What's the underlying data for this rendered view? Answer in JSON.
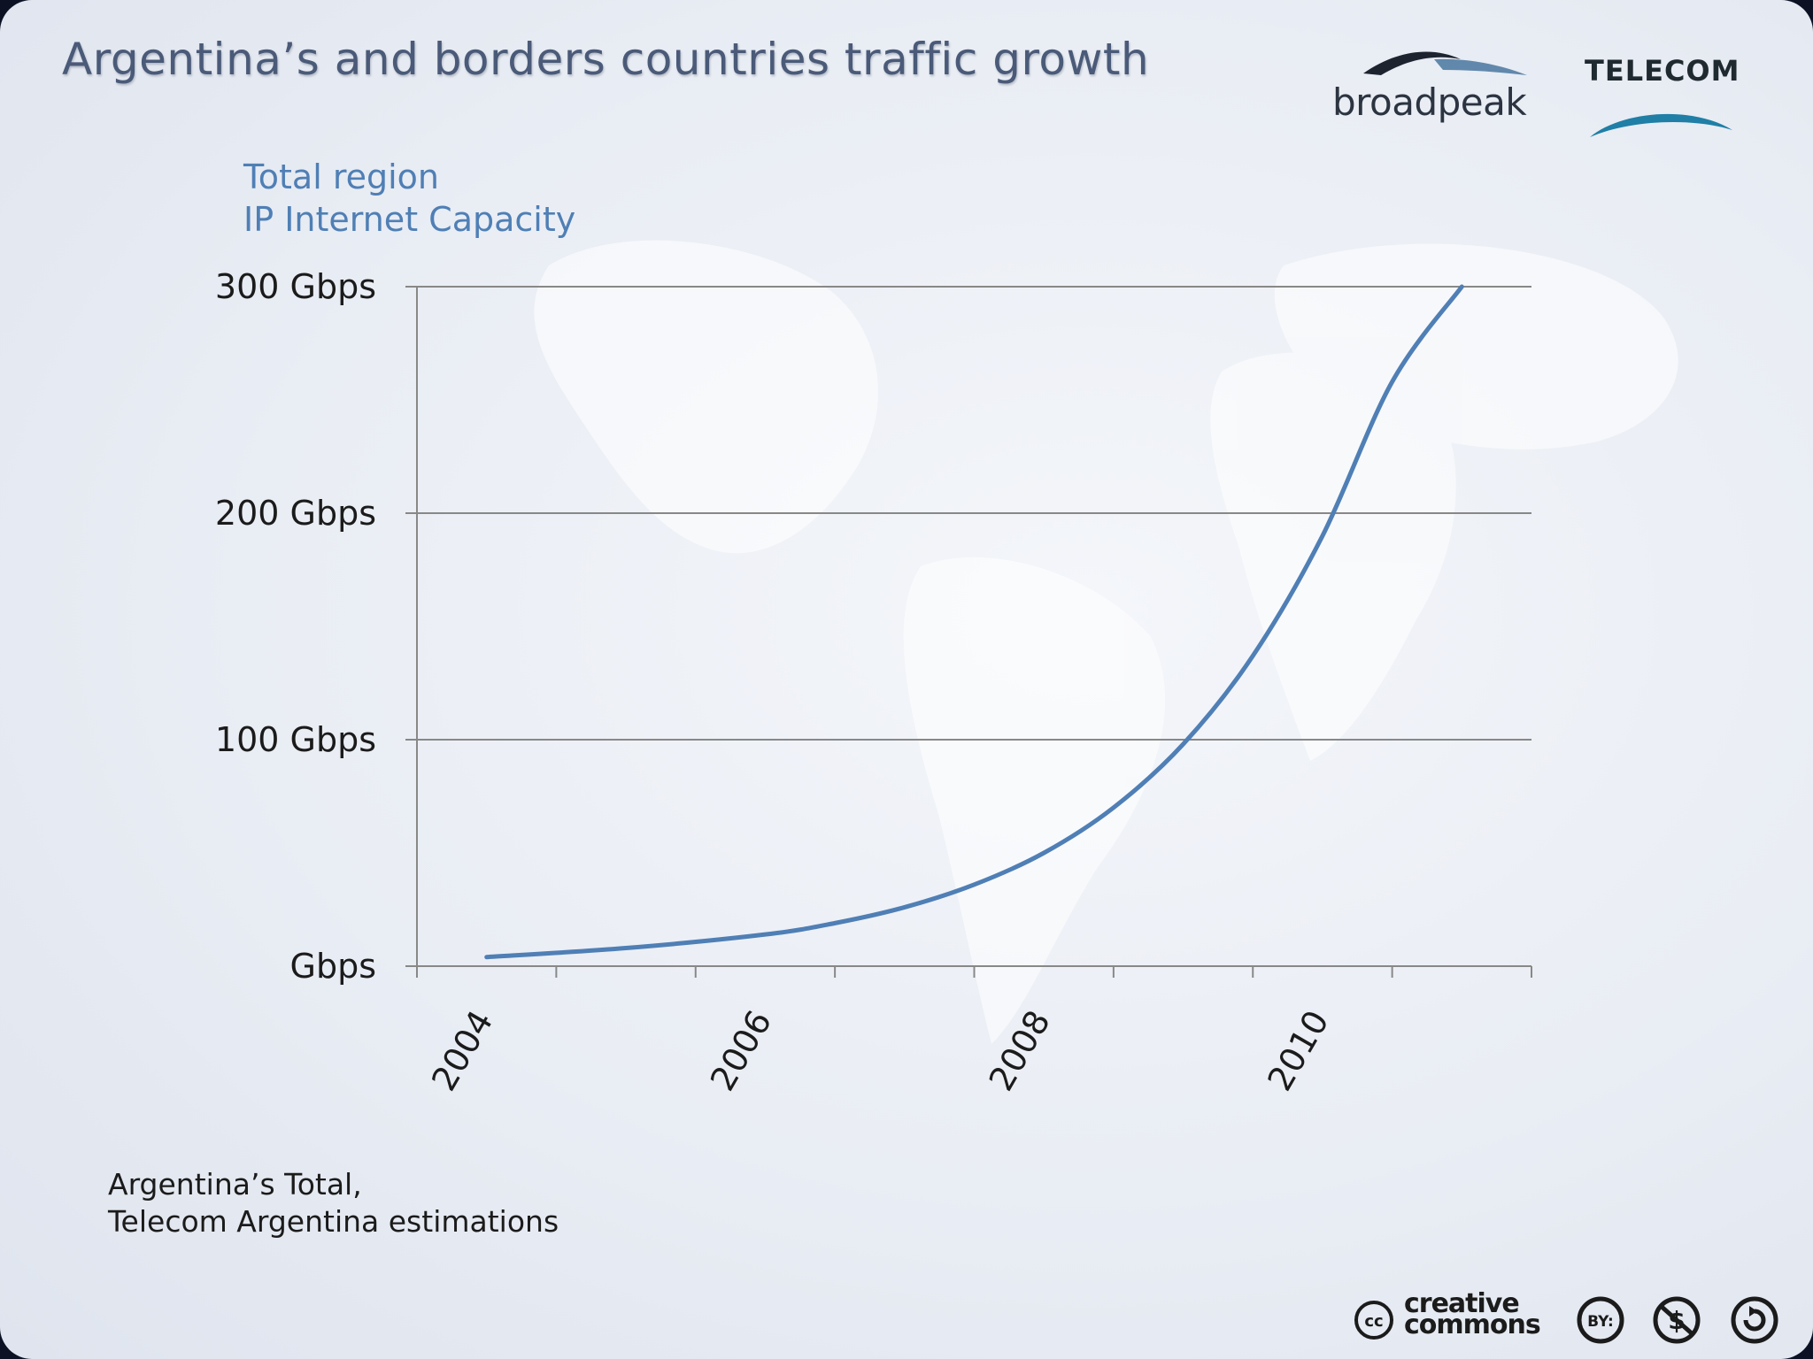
{
  "slide": {
    "title": "Argentina’s and borders countries traffic  growth",
    "source_line1": "Argentina’s Total,",
    "source_line2": "Telecom Argentina estimations"
  },
  "logos": {
    "broadpeak": "broadpeak",
    "telecom": "TELECOM",
    "creative_commons": [
      "creative",
      "commons"
    ],
    "license_icons": [
      "cc-icon",
      "by-icon",
      "nc-icon",
      "sa-icon"
    ]
  },
  "colors": {
    "line": "#4f7fb5",
    "chart_title": "#4f7fb5",
    "grid": "#888888"
  },
  "chart_data": {
    "type": "line",
    "title_lines": [
      "Total region",
      "IP Internet Capacity"
    ],
    "x_ticklabels": [
      "2004",
      "2006",
      "2008",
      "2010"
    ],
    "y_ticklabels": [
      "Gbps",
      "100 Gbps",
      "200 Gbps",
      "300 Gbps"
    ],
    "y_ticks": [
      0,
      100,
      200,
      300
    ],
    "xlim": [
      2003.5,
      2011.5
    ],
    "ylim": [
      0,
      300
    ],
    "grid": "horizontal",
    "series": [
      {
        "x": [
          2004,
          2005,
          2006,
          2006.5,
          2007,
          2007.5,
          2008,
          2008.5,
          2009,
          2009.5,
          2010,
          2010.5,
          2011
        ],
        "values": [
          4,
          8,
          14,
          19,
          26,
          36,
          50,
          70,
          98,
          137,
          190,
          258,
          300
        ]
      }
    ]
  }
}
